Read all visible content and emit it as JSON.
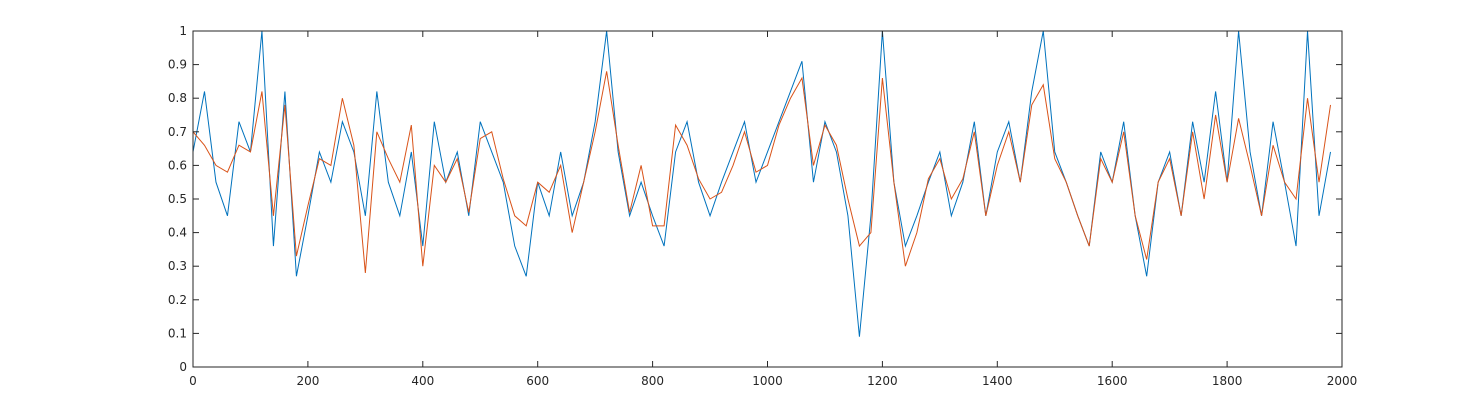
{
  "chart_data": {
    "type": "line",
    "x": [
      0,
      20,
      40,
      60,
      80,
      100,
      120,
      140,
      160,
      180,
      200,
      220,
      240,
      260,
      280,
      300,
      320,
      340,
      360,
      380,
      400,
      420,
      440,
      460,
      480,
      500,
      520,
      540,
      560,
      580,
      600,
      620,
      640,
      660,
      680,
      700,
      720,
      740,
      760,
      780,
      800,
      820,
      840,
      860,
      880,
      900,
      920,
      940,
      960,
      980,
      1000,
      1020,
      1040,
      1060,
      1080,
      1100,
      1120,
      1140,
      1160,
      1180,
      1200,
      1220,
      1240,
      1260,
      1280,
      1300,
      1320,
      1340,
      1360,
      1380,
      1400,
      1420,
      1440,
      1460,
      1480,
      1500,
      1520,
      1540,
      1560,
      1580,
      1600,
      1620,
      1640,
      1660,
      1680,
      1700,
      1720,
      1740,
      1760,
      1780,
      1800,
      1820,
      1840,
      1860,
      1880,
      1900,
      1920,
      1940,
      1960,
      1980
    ],
    "series": [
      {
        "color": "#0072bd",
        "values": [
          0.64,
          0.82,
          0.55,
          0.45,
          0.73,
          0.64,
          1.0,
          0.36,
          0.82,
          0.27,
          0.45,
          0.64,
          0.55,
          0.73,
          0.64,
          0.45,
          0.82,
          0.55,
          0.45,
          0.64,
          0.36,
          0.73,
          0.55,
          0.64,
          0.45,
          0.73,
          0.64,
          0.55,
          0.36,
          0.27,
          0.55,
          0.45,
          0.64,
          0.45,
          0.55,
          0.73,
          1.0,
          0.64,
          0.45,
          0.55,
          0.45,
          0.36,
          0.64,
          0.73,
          0.55,
          0.45,
          0.55,
          0.64,
          0.73,
          0.55,
          0.64,
          0.73,
          0.82,
          0.91,
          0.55,
          0.73,
          0.64,
          0.45,
          0.09,
          0.45,
          1.0,
          0.55,
          0.36,
          0.45,
          0.55,
          0.64,
          0.45,
          0.55,
          0.73,
          0.45,
          0.64,
          0.73,
          0.55,
          0.82,
          1.0,
          0.64,
          0.55,
          0.45,
          0.36,
          0.64,
          0.55,
          0.73,
          0.45,
          0.27,
          0.55,
          0.64,
          0.45,
          0.73,
          0.55,
          0.82,
          0.55,
          1.0,
          0.64,
          0.45,
          0.73,
          0.55,
          0.36,
          1.0,
          0.45,
          0.64
        ]
      },
      {
        "color": "#d95319",
        "values": [
          0.7,
          0.66,
          0.6,
          0.58,
          0.66,
          0.64,
          0.82,
          0.45,
          0.78,
          0.33,
          0.48,
          0.62,
          0.6,
          0.8,
          0.66,
          0.28,
          0.7,
          0.62,
          0.55,
          0.72,
          0.3,
          0.6,
          0.55,
          0.62,
          0.46,
          0.68,
          0.7,
          0.56,
          0.45,
          0.42,
          0.55,
          0.52,
          0.6,
          0.4,
          0.55,
          0.7,
          0.88,
          0.66,
          0.46,
          0.6,
          0.42,
          0.42,
          0.72,
          0.66,
          0.56,
          0.5,
          0.52,
          0.6,
          0.7,
          0.58,
          0.6,
          0.72,
          0.8,
          0.86,
          0.6,
          0.72,
          0.66,
          0.5,
          0.36,
          0.4,
          0.86,
          0.55,
          0.3,
          0.4,
          0.56,
          0.62,
          0.5,
          0.56,
          0.7,
          0.45,
          0.6,
          0.7,
          0.55,
          0.78,
          0.84,
          0.62,
          0.55,
          0.45,
          0.36,
          0.62,
          0.55,
          0.7,
          0.45,
          0.32,
          0.55,
          0.62,
          0.45,
          0.7,
          0.5,
          0.75,
          0.55,
          0.74,
          0.6,
          0.45,
          0.66,
          0.55,
          0.5,
          0.8,
          0.55,
          0.78
        ]
      }
    ],
    "xlim": [
      0,
      2000
    ],
    "xticks": [
      0,
      200,
      400,
      600,
      800,
      1000,
      1200,
      1400,
      1600,
      1800,
      2000
    ],
    "ylim": [
      0,
      1
    ],
    "yticks": [
      0,
      0.1,
      0.2,
      0.3,
      0.4,
      0.5,
      0.6,
      0.7,
      0.8,
      0.9,
      1
    ],
    "grid": false
  }
}
